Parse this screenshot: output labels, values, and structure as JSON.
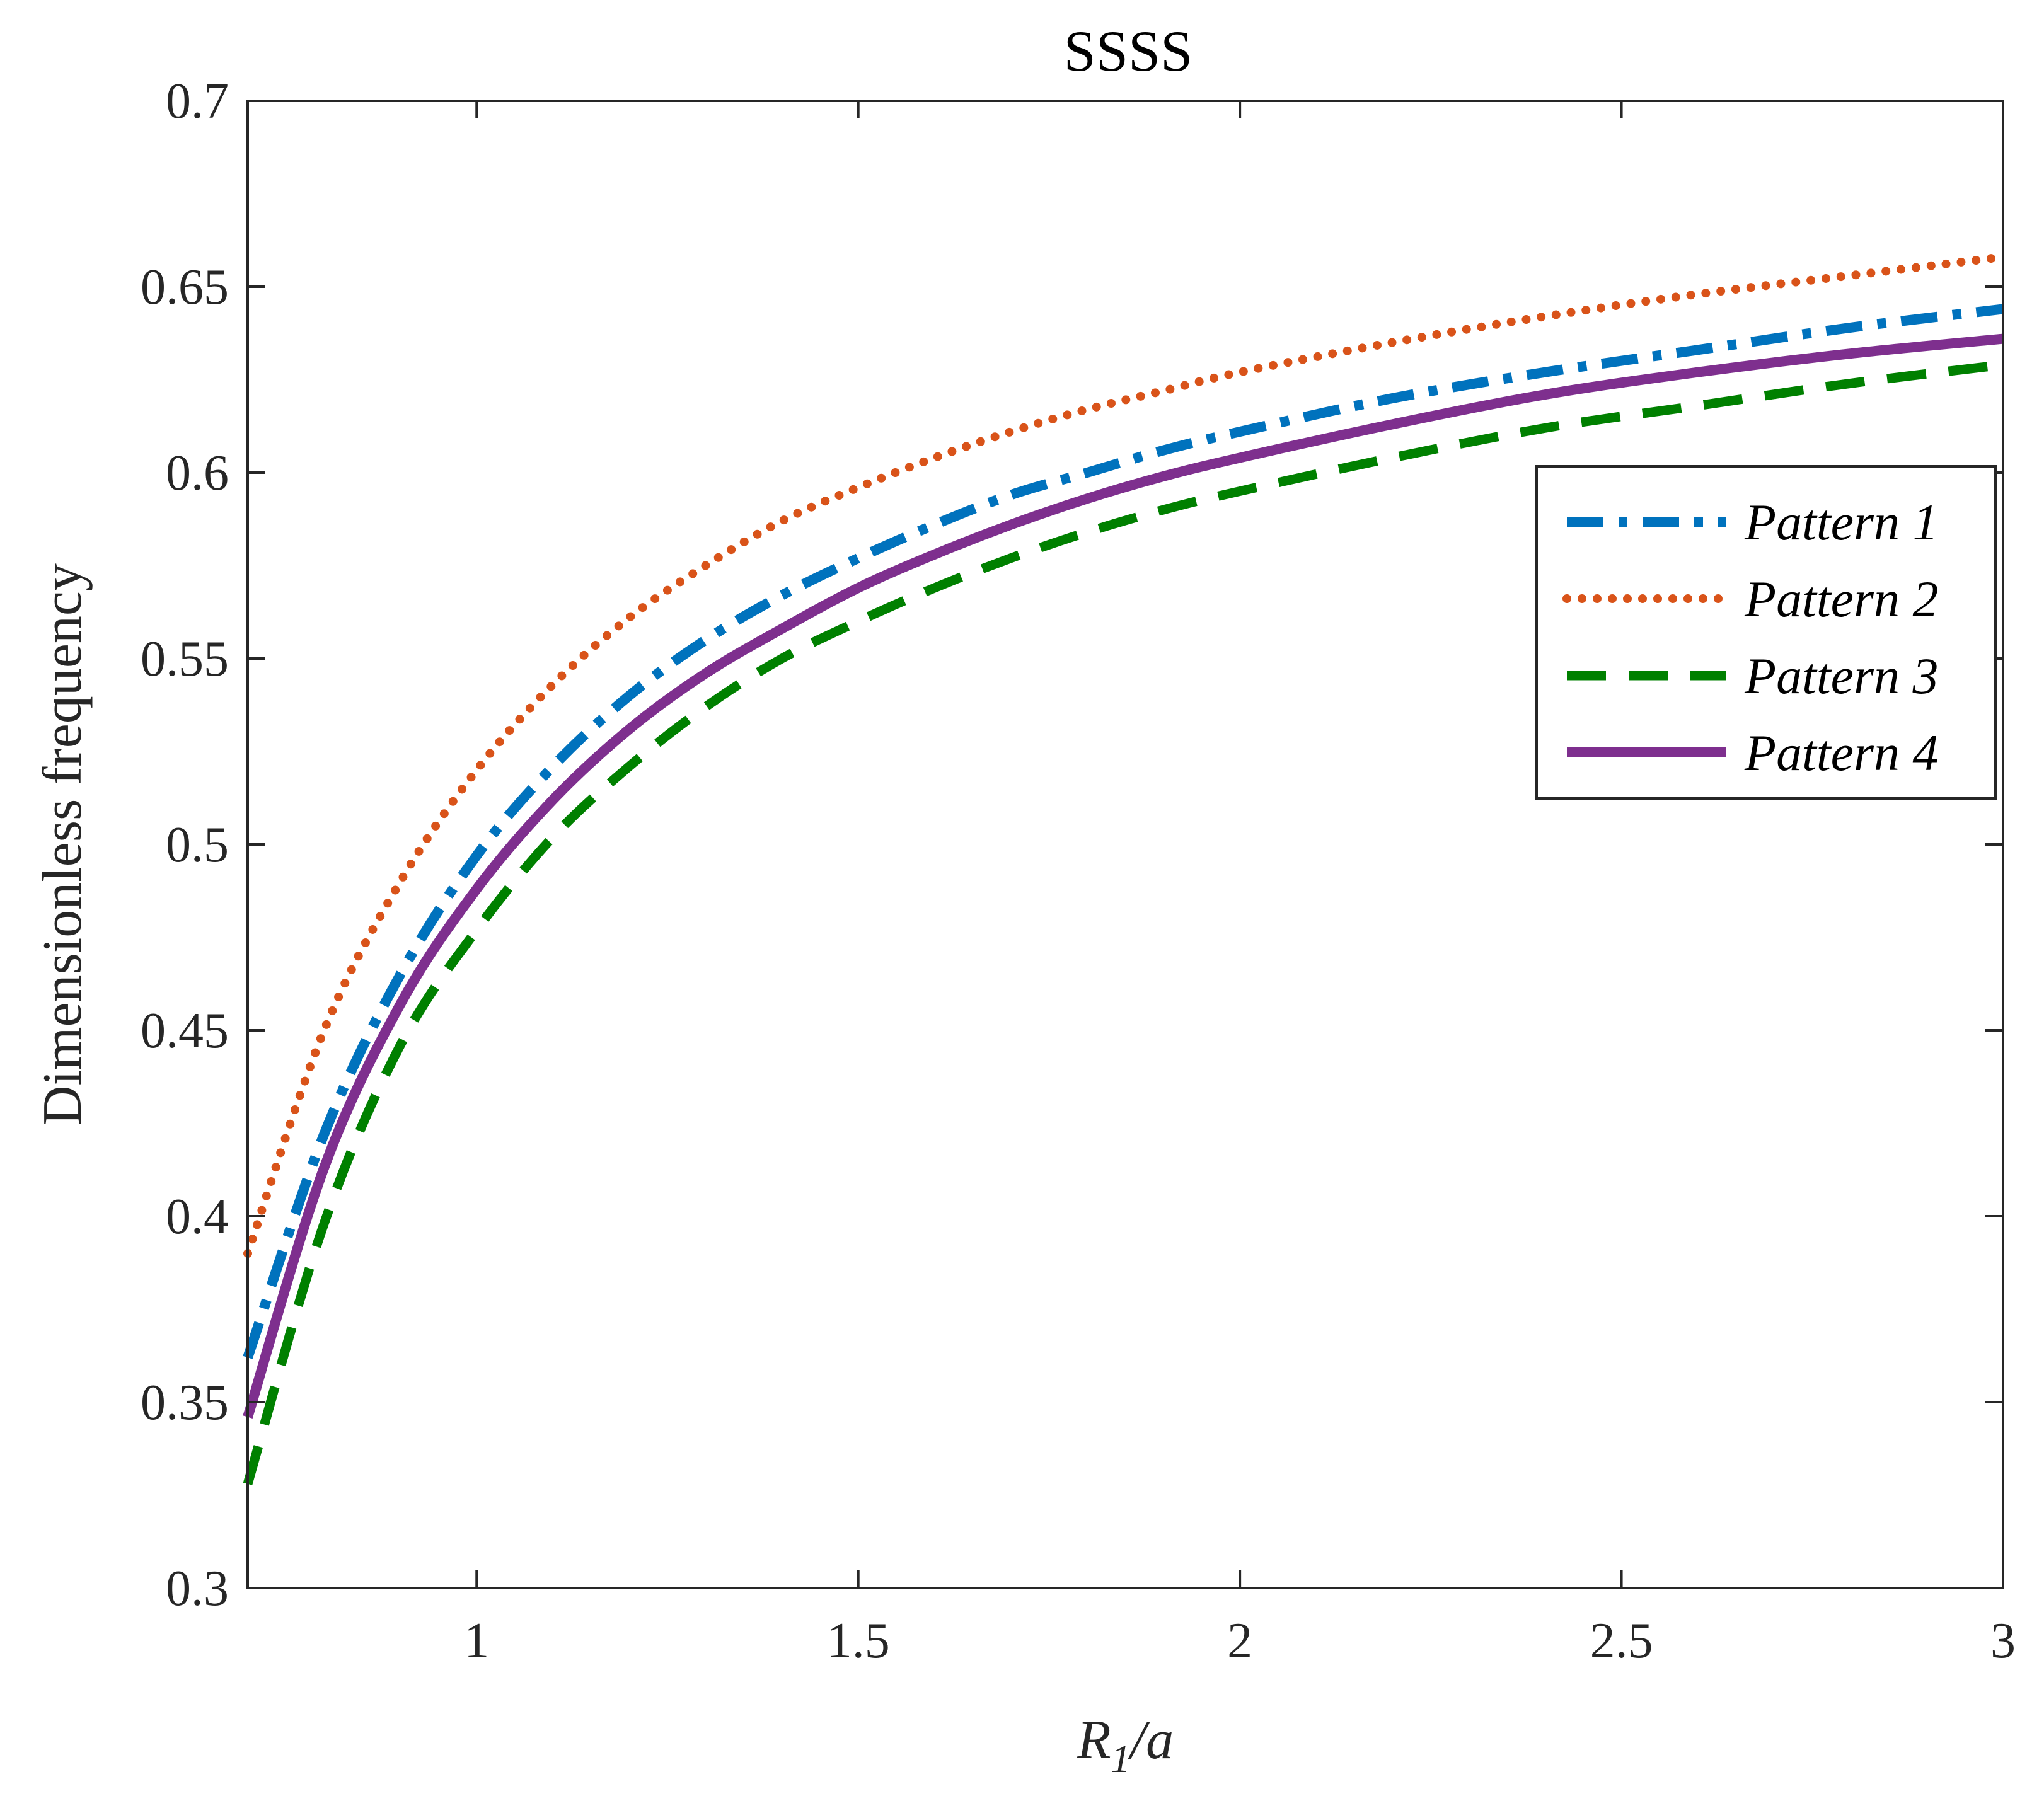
{
  "chart_data": {
    "type": "line",
    "title": "SSSS",
    "xlabel": {
      "main": "R",
      "subscript": "1",
      "suffix": "/a"
    },
    "ylabel": "Dimensionless frequency",
    "xlim": [
      0.7,
      3.0
    ],
    "ylim": [
      0.3,
      0.7
    ],
    "xticks": [
      1,
      1.5,
      2,
      2.5,
      3
    ],
    "xtick_labels": [
      "1",
      "1.5",
      "2",
      "2.5",
      "3"
    ],
    "yticks": [
      0.3,
      0.35,
      0.4,
      0.45,
      0.5,
      0.55,
      0.6,
      0.65,
      0.7
    ],
    "ytick_labels": [
      "0.3",
      "0.35",
      "0.4",
      "0.45",
      "0.5",
      "0.55",
      "0.6",
      "0.65",
      "0.7"
    ],
    "grid": false,
    "legend_position": "top-right",
    "x": [
      0.7,
      0.8,
      0.9,
      1.0,
      1.1,
      1.2,
      1.3,
      1.4,
      1.5,
      1.6,
      1.7,
      1.8,
      1.9,
      2.0,
      2.2,
      2.4,
      2.6,
      2.8,
      3.0
    ],
    "series": [
      {
        "name": "Pattern 1",
        "color": "#0072BD",
        "style": "dashdot",
        "values": [
          0.362,
          0.422,
          0.465,
          0.497,
          0.521,
          0.54,
          0.555,
          0.567,
          0.577,
          0.586,
          0.594,
          0.6,
          0.606,
          0.611,
          0.62,
          0.627,
          0.633,
          0.639,
          0.644
        ]
      },
      {
        "name": "Pattern 2",
        "color": "#D95319",
        "style": "dotted",
        "values": [
          0.39,
          0.45,
          0.49,
          0.52,
          0.543,
          0.561,
          0.575,
          0.587,
          0.596,
          0.604,
          0.611,
          0.617,
          0.622,
          0.627,
          0.635,
          0.642,
          0.648,
          0.653,
          0.658
        ]
      },
      {
        "name": "Pattern 3",
        "color": "#008000",
        "style": "dashed",
        "values": [
          0.328,
          0.398,
          0.446,
          0.477,
          0.502,
          0.521,
          0.537,
          0.55,
          0.56,
          0.569,
          0.577,
          0.584,
          0.59,
          0.595,
          0.604,
          0.612,
          0.618,
          0.624,
          0.629
        ]
      },
      {
        "name": "Pattern 4",
        "color": "#7E2F8E",
        "style": "solid",
        "values": [
          0.346,
          0.413,
          0.457,
          0.488,
          0.512,
          0.531,
          0.546,
          0.558,
          0.569,
          0.578,
          0.586,
          0.593,
          0.599,
          0.604,
          0.613,
          0.621,
          0.627,
          0.632,
          0.636
        ]
      }
    ]
  }
}
